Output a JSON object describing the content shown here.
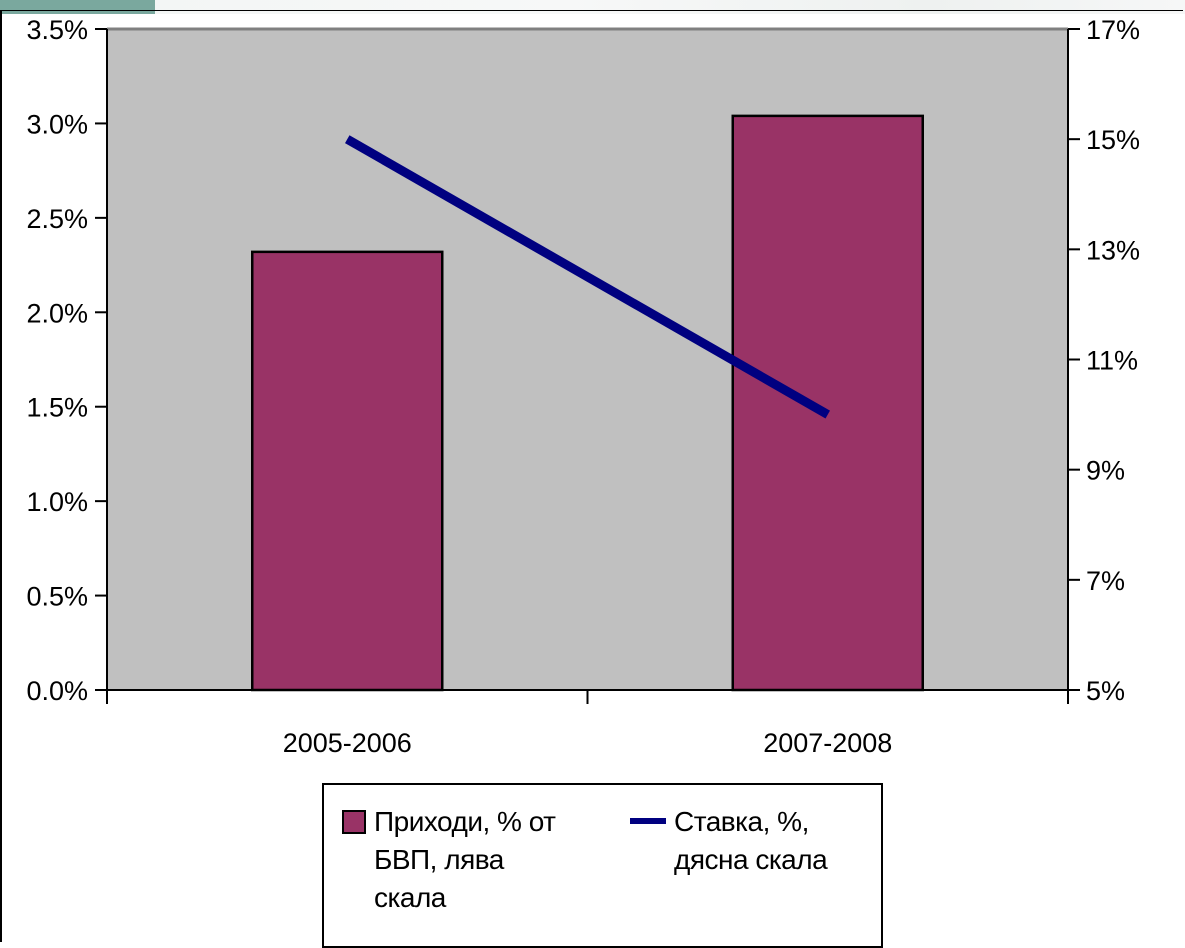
{
  "chart_data": {
    "type": "bar",
    "categories": [
      "2005-2006",
      "2007-2008"
    ],
    "series": [
      {
        "name": "Приходи, % от БВП, лява скала",
        "type": "bar",
        "axis": "left",
        "values": [
          2.32,
          3.04
        ],
        "color": "#993366"
      },
      {
        "name": "Ставка, %, дясна скала",
        "type": "line",
        "axis": "right",
        "values": [
          15.0,
          10.0
        ],
        "color": "#000080"
      }
    ],
    "y_left": {
      "min": 0.0,
      "max": 3.5,
      "ticks": [
        0.0,
        0.5,
        1.0,
        1.5,
        2.0,
        2.5,
        3.0,
        3.5
      ],
      "tick_labels": [
        "0.0%",
        "0.5%",
        "1.0%",
        "1.5%",
        "2.0%",
        "2.5%",
        "3.0%",
        "3.5%"
      ]
    },
    "y_right": {
      "min": 5,
      "max": 17,
      "ticks": [
        5,
        7,
        9,
        11,
        13,
        15,
        17
      ],
      "tick_labels": [
        "5%",
        "7%",
        "9%",
        "11%",
        "13%",
        "15%",
        "17%"
      ]
    },
    "grid": false,
    "plot_background": "#c0c0c0",
    "legend_position": "bottom"
  },
  "legend": {
    "bar_label_lines": [
      "Приходи, % от",
      "БВП, лява",
      "скала"
    ],
    "line_label_lines": [
      "Ставка, %,",
      "дясна скала"
    ]
  }
}
